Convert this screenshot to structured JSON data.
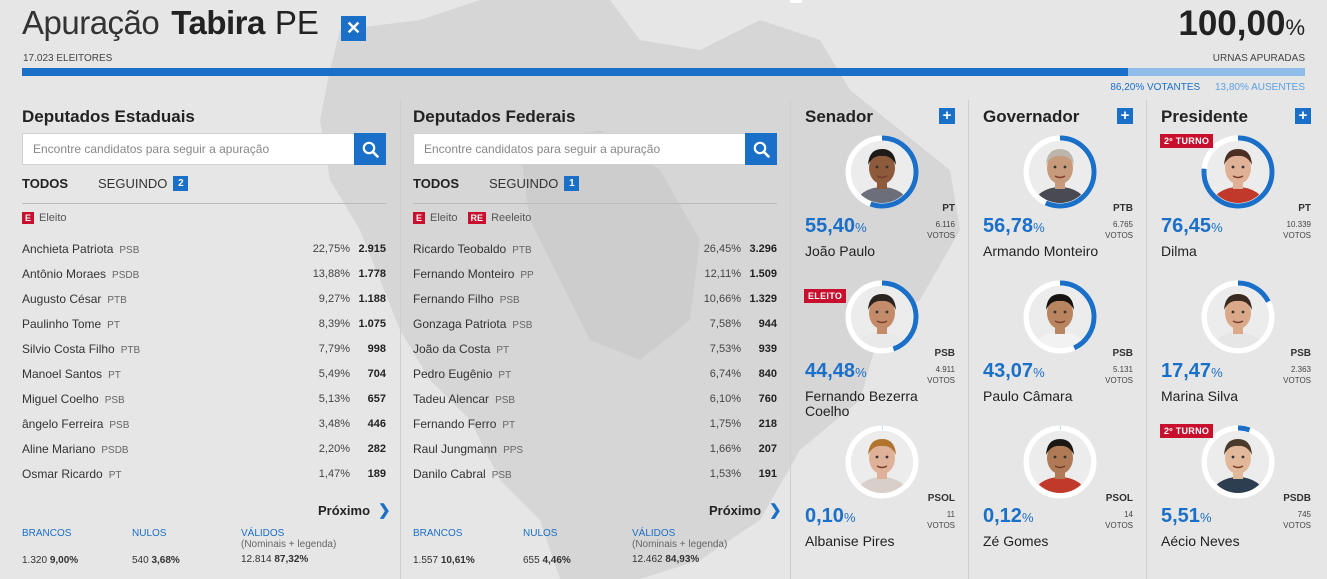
{
  "header": {
    "apuracao_label": "Apuração",
    "city": "Tabira",
    "uf": "PE",
    "close_icon": "close-icon",
    "eleitores": "17.023 ELEITORES",
    "urnas_pct": "100,00",
    "urnas_pct_symbol": "%",
    "urnas_label": "URNAS APURADAS",
    "votantes": "86,20% VOTANTES",
    "ausentes": "13,80% AUSENTES",
    "votantes_fraction": 0.862
  },
  "colors": {
    "accent": "#1a6fc8",
    "elected": "#c8102e",
    "background": "#e6e6e6"
  },
  "estaduais": {
    "title": "Deputados Estaduais",
    "search_placeholder": "Encontre candidatos para seguir a apuração",
    "search_icon": "search-icon",
    "tab_todos": "TODOS",
    "tab_seguindo": "SEGUINDO",
    "seguindo_count": "2",
    "legend_tag": "E",
    "legend_label": "Eleito",
    "rows": [
      {
        "name": "Anchieta Patriota",
        "party": "PSB",
        "pct": "22,75%",
        "votes": "2.915"
      },
      {
        "name": "Antônio Moraes",
        "party": "PSDB",
        "pct": "13,88%",
        "votes": "1.778"
      },
      {
        "name": "Augusto César",
        "party": "PTB",
        "pct": "9,27%",
        "votes": "1.188"
      },
      {
        "name": "Paulinho Tome",
        "party": "PT",
        "pct": "8,39%",
        "votes": "1.075"
      },
      {
        "name": "Silvio Costa Filho",
        "party": "PTB",
        "pct": "7,79%",
        "votes": "998"
      },
      {
        "name": "Manoel Santos",
        "party": "PT",
        "pct": "5,49%",
        "votes": "704"
      },
      {
        "name": "Miguel Coelho",
        "party": "PSB",
        "pct": "5,13%",
        "votes": "657"
      },
      {
        "name": "ângelo Ferreira",
        "party": "PSB",
        "pct": "3,48%",
        "votes": "446"
      },
      {
        "name": "Aline Mariano",
        "party": "PSDB",
        "pct": "2,20%",
        "votes": "282"
      },
      {
        "name": "Osmar Ricardo",
        "party": "PT",
        "pct": "1,47%",
        "votes": "189"
      }
    ],
    "proximo": "Próximo",
    "brancos_label": "BRANCOS",
    "nulos_label": "NULOS",
    "validos_label": "VÁLIDOS",
    "validos_sub": "(Nominais + legenda)",
    "brancos_n": "1.320",
    "brancos_pct": "9,00%",
    "nulos_n": "540",
    "nulos_pct": "3,68%",
    "validos_n": "12.814",
    "validos_pct": "87,32%"
  },
  "federais": {
    "title": "Deputados Federais",
    "search_placeholder": "Encontre candidatos para seguir a apuração",
    "search_icon": "search-icon",
    "tab_todos": "TODOS",
    "tab_seguindo": "SEGUINDO",
    "seguindo_count": "1",
    "legend_tag": "E",
    "legend_label": "Eleito",
    "legend_tag2": "RE",
    "legend_label2": "Reeleito",
    "rows": [
      {
        "name": "Ricardo Teobaldo",
        "party": "PTB",
        "pct": "26,45%",
        "votes": "3.296"
      },
      {
        "name": "Fernando Monteiro",
        "party": "PP",
        "pct": "12,11%",
        "votes": "1.509"
      },
      {
        "name": "Fernando Filho",
        "party": "PSB",
        "pct": "10,66%",
        "votes": "1.329"
      },
      {
        "name": "Gonzaga Patriota",
        "party": "PSB",
        "pct": "7,58%",
        "votes": "944"
      },
      {
        "name": "João da Costa",
        "party": "PT",
        "pct": "7,53%",
        "votes": "939"
      },
      {
        "name": "Pedro Eugênio",
        "party": "PT",
        "pct": "6,74%",
        "votes": "840"
      },
      {
        "name": "Tadeu Alencar",
        "party": "PSB",
        "pct": "6,10%",
        "votes": "760"
      },
      {
        "name": "Fernando Ferro",
        "party": "PT",
        "pct": "1,75%",
        "votes": "218"
      },
      {
        "name": "Raul Jungmann",
        "party": "PPS",
        "pct": "1,66%",
        "votes": "207"
      },
      {
        "name": "Danilo Cabral",
        "party": "PSB",
        "pct": "1,53%",
        "votes": "191"
      }
    ],
    "proximo": "Próximo",
    "brancos_label": "BRANCOS",
    "nulos_label": "NULOS",
    "validos_label": "VÁLIDOS",
    "validos_sub": "(Nominais + legenda)",
    "brancos_n": "1.557",
    "brancos_pct": "10,61%",
    "nulos_n": "655",
    "nulos_pct": "4,46%",
    "validos_n": "12.462",
    "validos_pct": "84,93%"
  },
  "senador": {
    "title": "Senador",
    "candidates": [
      {
        "pct": "55,40",
        "name": "João Paulo",
        "party": "PT",
        "votes": "6.116",
        "votes_label": "VOTOS",
        "tag": "",
        "fraction": 0.554
      },
      {
        "pct": "44,48",
        "name": "Fernando Bezerra Coelho",
        "party": "PSB",
        "votes": "4.911",
        "votes_label": "VOTOS",
        "tag": "ELEITO",
        "fraction": 0.4448
      },
      {
        "pct": "0,10",
        "name": "Albanise Pires",
        "party": "PSOL",
        "votes": "11",
        "votes_label": "VOTOS",
        "tag": "",
        "fraction": 0.001
      }
    ]
  },
  "governador": {
    "title": "Governador",
    "candidates": [
      {
        "pct": "56,78",
        "name": "Armando Monteiro",
        "party": "PTB",
        "votes": "6.765",
        "votes_label": "VOTOS",
        "tag": "",
        "fraction": 0.5678
      },
      {
        "pct": "43,07",
        "name": "Paulo Câmara",
        "party": "PSB",
        "votes": "5.131",
        "votes_label": "VOTOS",
        "tag": "",
        "fraction": 0.4307
      },
      {
        "pct": "0,12",
        "name": "Zé Gomes",
        "party": "PSOL",
        "votes": "14",
        "votes_label": "VOTOS",
        "tag": "",
        "fraction": 0.0012
      }
    ]
  },
  "presidente": {
    "title": "Presidente",
    "candidates": [
      {
        "pct": "76,45",
        "name": "Dilma",
        "party": "PT",
        "votes": "10.339",
        "votes_label": "VOTOS",
        "tag": "2º TURNO",
        "fraction": 0.7645
      },
      {
        "pct": "17,47",
        "name": "Marina Silva",
        "party": "PSB",
        "votes": "2.363",
        "votes_label": "VOTOS",
        "tag": "",
        "fraction": 0.1747
      },
      {
        "pct": "5,51",
        "name": "Aécio Neves",
        "party": "PSDB",
        "votes": "745",
        "votes_label": "VOTOS",
        "tag": "2º TURNO",
        "fraction": 0.0551
      }
    ]
  },
  "pct_symbol": "%"
}
